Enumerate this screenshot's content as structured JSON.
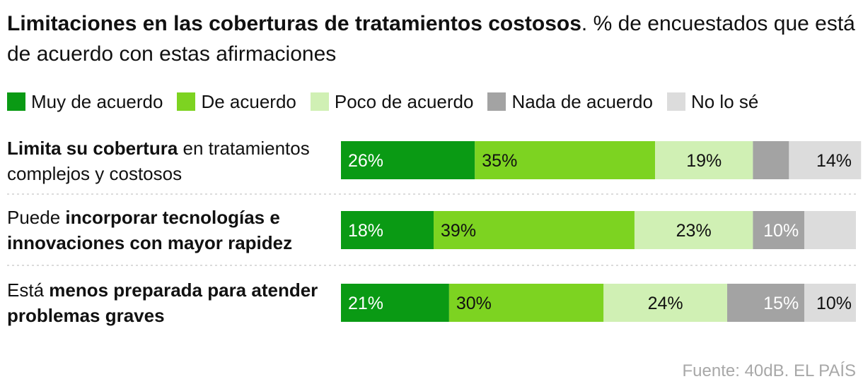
{
  "title": {
    "bold": "Limitaciones en las coberturas de tratamientos costosos",
    "rest": ". % de encuestados que está de acuerdo con estas afirmaciones"
  },
  "source": "Fuente: 40dB. EL PAÍS",
  "chart_data": {
    "type": "bar",
    "orientation": "horizontal",
    "stacked": true,
    "normalized": true,
    "title": "Limitaciones en las coberturas de tratamientos costosos. % de encuestados que está de acuerdo con estas afirmaciones",
    "xlabel": "",
    "ylabel": "",
    "xlim": [
      0,
      100
    ],
    "grid": false,
    "legend": "top",
    "categories": [
      {
        "parts": [
          {
            "text": "Limita su cobertura",
            "bold": true
          },
          {
            "text": " en tratamientos complejos y costosos",
            "bold": false
          }
        ]
      },
      {
        "parts": [
          {
            "text": "Puede ",
            "bold": false
          },
          {
            "text": "incorporar tecnologías e innovaciones con mayor rapidez",
            "bold": true
          }
        ]
      },
      {
        "parts": [
          {
            "text": "Está ",
            "bold": false
          },
          {
            "text": "menos preparada para atender problemas graves",
            "bold": true
          }
        ]
      }
    ],
    "series": [
      {
        "name": "Muy de acuerdo",
        "color": "#0a9a14",
        "label_color": "#ffffff",
        "values": [
          26,
          18,
          21
        ],
        "labels": [
          "26%",
          "18%",
          "21%"
        ]
      },
      {
        "name": "De acuerdo",
        "color": "#7dd321",
        "label_color": "#111111",
        "values": [
          35,
          39,
          30
        ],
        "labels": [
          "35%",
          "39%",
          "30%"
        ]
      },
      {
        "name": "Poco de acuerdo",
        "color": "#d0f0b4",
        "label_color": "#111111",
        "values": [
          19,
          23,
          24
        ],
        "labels": [
          "19%",
          "23%",
          "24%"
        ]
      },
      {
        "name": "Nada de acuerdo",
        "color": "#a3a3a3",
        "label_color": "#ffffff",
        "values": [
          7,
          10,
          15
        ],
        "labels": [
          "",
          "10%",
          "15%"
        ]
      },
      {
        "name": "No lo sé",
        "color": "#dcdcdc",
        "label_color": "#111111",
        "values": [
          14,
          10,
          10
        ],
        "labels": [
          "14%",
          "",
          "10%"
        ]
      }
    ]
  }
}
